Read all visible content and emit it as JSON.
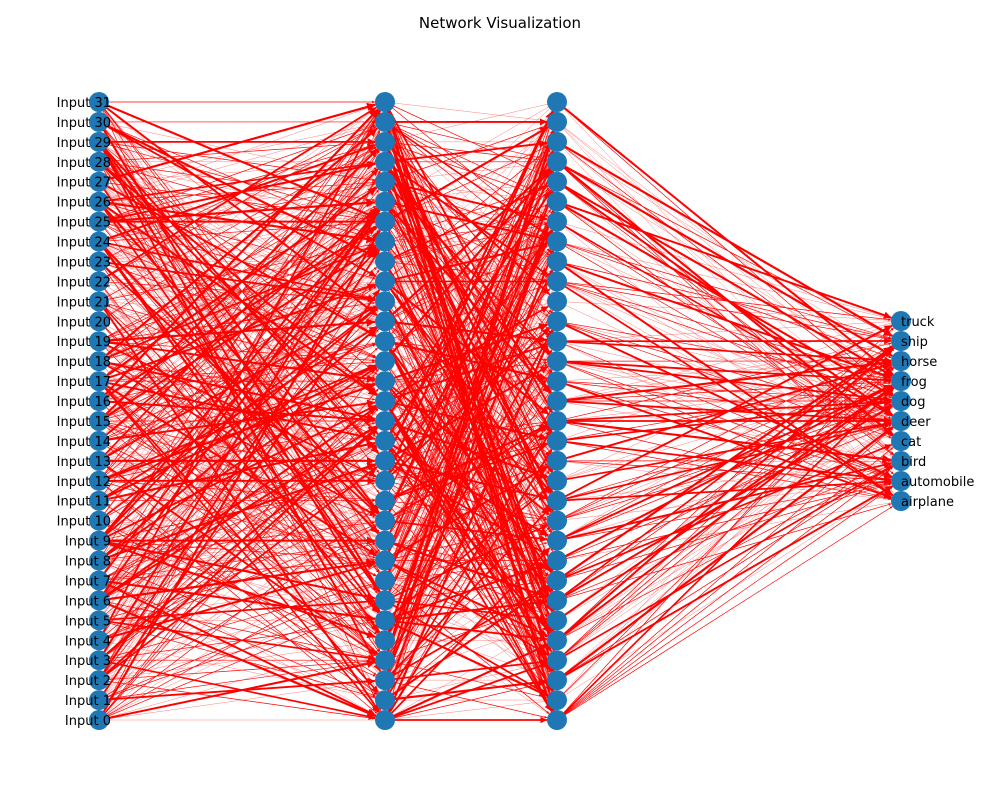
{
  "title": "Network Visualization",
  "colors": {
    "node": "#1f77b4",
    "edge": "#ff0000",
    "text": "#000000",
    "background": "#ffffff"
  },
  "layers": [
    {
      "name": "input",
      "count": 32,
      "labels": [
        "Input 0",
        "Input 1",
        "Input 2",
        "Input 3",
        "Input 4",
        "Input 5",
        "Input 6",
        "Input 7",
        "Input 8",
        "Input 9",
        "Input 10",
        "Input 11",
        "Input 12",
        "Input 13",
        "Input 14",
        "Input 15",
        "Input 16",
        "Input 17",
        "Input 18",
        "Input 19",
        "Input 20",
        "Input 21",
        "Input 22",
        "Input 23",
        "Input 24",
        "Input 25",
        "Input 26",
        "Input 27",
        "Input 28",
        "Input 29",
        "Input 30",
        "Input 31"
      ],
      "label_side": "left"
    },
    {
      "name": "hidden-1",
      "count": 32,
      "labels": []
    },
    {
      "name": "hidden-2",
      "count": 32,
      "labels": []
    },
    {
      "name": "output",
      "count": 10,
      "labels": [
        "airplane",
        "automobile",
        "bird",
        "cat",
        "deer",
        "dog",
        "frog",
        "horse",
        "ship",
        "truck"
      ],
      "label_side": "right"
    }
  ],
  "connectivity": "fully-connected directed edges between consecutive layers, width proportional to weight"
}
